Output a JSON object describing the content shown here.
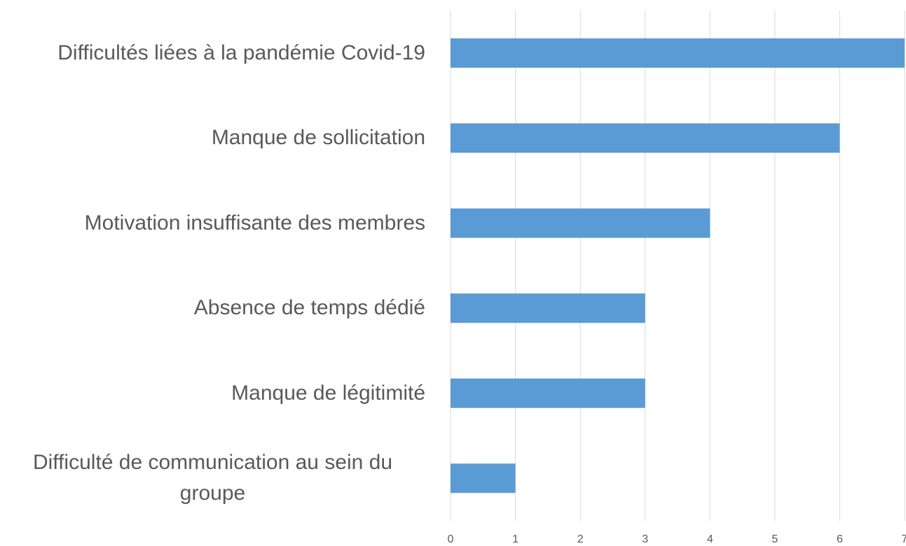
{
  "chart_data": {
    "type": "bar",
    "orientation": "horizontal",
    "categories": [
      "Difficultés liées à la pandémie Covid-19",
      "Manque de sollicitation",
      "Motivation insuffisante des membres",
      "Absence de temps dédié",
      "Manque de légitimité",
      "Difficulté de communication au sein du groupe"
    ],
    "values": [
      7,
      6,
      4,
      3,
      3,
      1
    ],
    "color": "#5b9bd5",
    "xlim": [
      0,
      7
    ],
    "xticks": [
      0,
      1,
      2,
      3,
      4,
      5,
      6,
      7
    ],
    "grid": true
  }
}
